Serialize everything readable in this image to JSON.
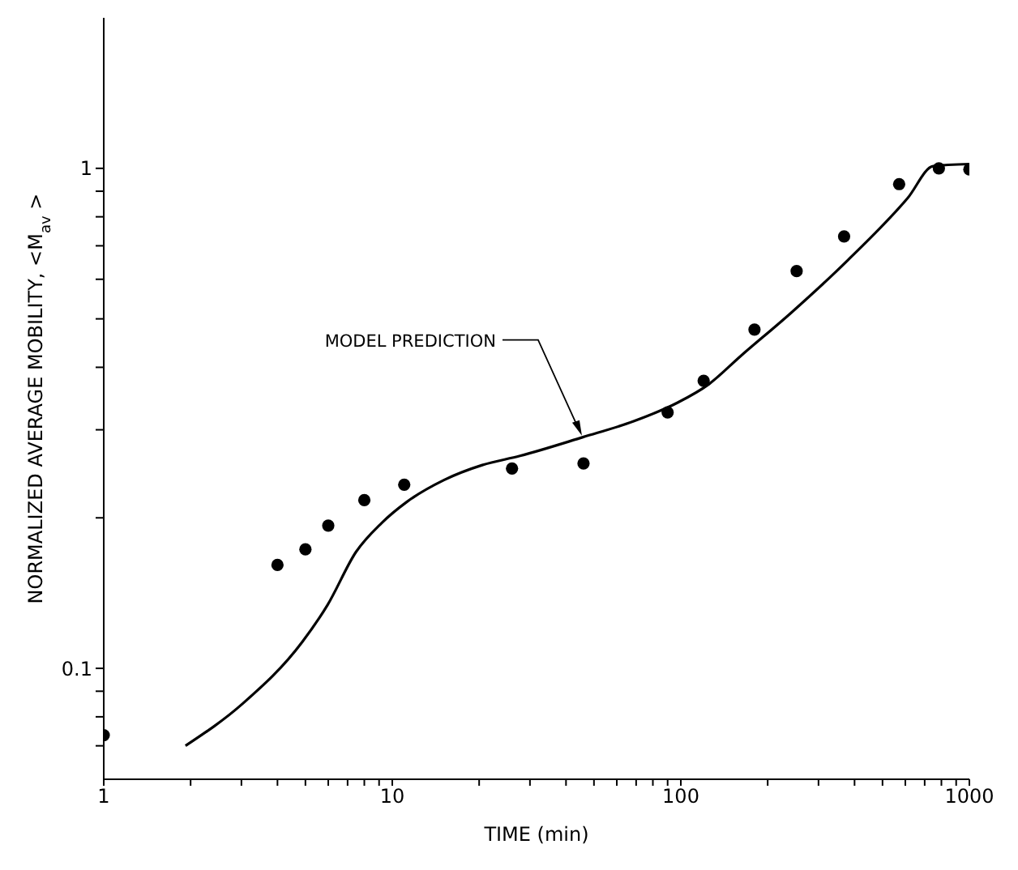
{
  "chart_data": {
    "type": "scatter",
    "xlabel": "TIME (min)",
    "ylabel": "NORMALIZED AVERAGE MOBILITY, <M$_{av}$>",
    "log": "xy",
    "grid": false,
    "xlim": [
      1,
      1000
    ],
    "xticks": [
      1,
      {
        "value": 2,
        "label": null
      },
      {
        "value": 3,
        "label": null
      },
      {
        "value": 4,
        "label": null
      },
      {
        "value": 5,
        "label": null
      },
      {
        "value": 6,
        "label": null
      },
      {
        "value": 7,
        "label": null
      },
      {
        "value": 8,
        "label": null
      },
      {
        "value": 9,
        "label": null
      },
      10,
      {
        "value": 20,
        "label": null
      },
      {
        "value": 30,
        "label": null
      },
      {
        "value": 40,
        "label": null
      },
      {
        "value": 50,
        "label": null
      },
      {
        "value": 60,
        "label": null
      },
      {
        "value": 70,
        "label": null
      },
      {
        "value": 80,
        "label": null
      },
      {
        "value": 90,
        "label": null
      },
      100,
      {
        "value": 200,
        "label": null
      },
      {
        "value": 300,
        "label": null
      },
      {
        "value": 400,
        "label": null
      },
      {
        "value": 500,
        "label": null
      },
      {
        "value": 600,
        "label": null
      },
      {
        "value": 700,
        "label": null
      },
      {
        "value": 800,
        "label": null
      },
      {
        "value": 900,
        "label": null
      },
      1000
    ],
    "ylim": [
      0.06,
      2
    ],
    "yticks": [
      {
        "value": 0.07,
        "label": null
      },
      {
        "value": 0.08,
        "label": null
      },
      {
        "value": 0.09,
        "label": null
      },
      0.1,
      {
        "value": 0.2,
        "label": null
      },
      {
        "value": 0.3,
        "label": null
      },
      {
        "value": 0.4,
        "label": null
      },
      {
        "value": 0.5,
        "label": null
      },
      {
        "value": 0.6,
        "label": null
      },
      {
        "value": 0.7,
        "label": null
      },
      {
        "value": 0.8,
        "label": null
      },
      {
        "value": 0.9,
        "label": null
      },
      1
    ],
    "series": [
      {
        "type": "scatter",
        "marker": "circle",
        "color": "#000000",
        "x": [
          1,
          4,
          5,
          6,
          8,
          11,
          26,
          46,
          90,
          120,
          180,
          252,
          368,
          571,
          784,
          1000
        ],
        "values": [
          0.0735,
          0.161,
          0.173,
          0.193,
          0.217,
          0.233,
          0.251,
          0.257,
          0.325,
          0.376,
          0.476,
          0.623,
          0.731,
          0.93,
          1.0,
          0.995
        ]
      },
      {
        "type": "line",
        "marker": "none",
        "line_style": "solid",
        "color": "#000000",
        "x": [
          1.92,
          3.03,
          4.88,
          5.97,
          7.49,
          9.16,
          11.2,
          15.1,
          20.5,
          27.7,
          45.8,
          68.6,
          97.5,
          125,
          161,
          241,
          380,
          612,
          749,
          1000
        ],
        "values": [
          0.07,
          0.085,
          0.113,
          0.134,
          0.171,
          0.195,
          0.215,
          0.238,
          0.255,
          0.266,
          0.29,
          0.312,
          0.34,
          0.37,
          0.421,
          0.514,
          0.656,
          0.873,
          1.01,
          1.02
        ]
      }
    ],
    "annotations": [
      {
        "text": "MODEL PREDICTION",
        "x": 46,
        "y": 0.29
      }
    ]
  }
}
